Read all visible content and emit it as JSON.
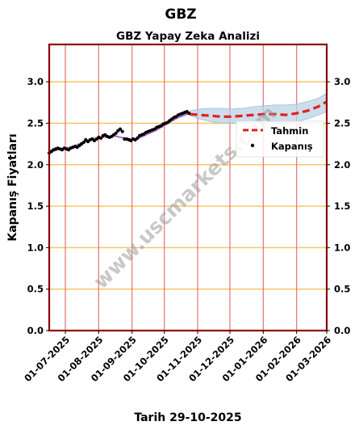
{
  "chart_data": {
    "type": "line",
    "title": "GBZ",
    "subtitle": "GBZ Yapay Zeka Analizi",
    "xlabel": "Tarih 29-10-2025",
    "ylabel": "Kapanış Fiyatları",
    "watermark": "www.uscmarkets.com",
    "ylim": [
      0,
      3.45
    ],
    "y_ticks": [
      "0.0",
      "0.5",
      "1.0",
      "1.5",
      "2.0",
      "2.5",
      "3.0"
    ],
    "x_range_days": [
      0,
      258
    ],
    "x_ticks": [
      {
        "label": "01-07-2025",
        "day": 15
      },
      {
        "label": "01-08-2025",
        "day": 46
      },
      {
        "label": "01-09-2025",
        "day": 77
      },
      {
        "label": "01-10-2025",
        "day": 107
      },
      {
        "label": "01-11-2025",
        "day": 138
      },
      {
        "label": "01-12-2025",
        "day": 168
      },
      {
        "label": "01-01-2026",
        "day": 199
      },
      {
        "label": "01-02-2026",
        "day": 230
      },
      {
        "label": "01-03-2026",
        "day": 258
      }
    ],
    "legend": {
      "placement": "right",
      "items": [
        {
          "label": "Tahmin",
          "kind": "dashed-line"
        },
        {
          "label": "Kapanış",
          "kind": "dot"
        }
      ]
    },
    "grid": true,
    "colors": {
      "frame": "#8b0000",
      "hgrid": "#f6c15a",
      "vgrid": "#e06666",
      "forecast": "#e51d1d",
      "band": "#b9d3e6",
      "fit": "#9b59d0",
      "close": "#000000",
      "watermark": "#9a9a9a"
    },
    "series": [
      {
        "name": "Kapanış",
        "kind": "scatter",
        "x": [
          0,
          2,
          4,
          6,
          8,
          10,
          12,
          14,
          16,
          18,
          20,
          22,
          24,
          26,
          28,
          30,
          32,
          34,
          36,
          38,
          40,
          42,
          44,
          46,
          48,
          50,
          52,
          54,
          56,
          58,
          60,
          62,
          64,
          66,
          68,
          70,
          72,
          74,
          76,
          78,
          80,
          82,
          84,
          86,
          88,
          90,
          92,
          94,
          96,
          98,
          100,
          102,
          104,
          106,
          108,
          110,
          112,
          114,
          116,
          118,
          120,
          122,
          124,
          126,
          128,
          130
        ],
        "y": [
          2.14,
          2.16,
          2.18,
          2.19,
          2.2,
          2.19,
          2.18,
          2.2,
          2.19,
          2.18,
          2.2,
          2.21,
          2.22,
          2.21,
          2.23,
          2.25,
          2.27,
          2.3,
          2.28,
          2.3,
          2.31,
          2.29,
          2.31,
          2.33,
          2.32,
          2.35,
          2.36,
          2.34,
          2.33,
          2.34,
          2.36,
          2.38,
          2.41,
          2.43,
          2.4,
          2.31,
          2.31,
          2.3,
          2.29,
          2.31,
          2.3,
          2.32,
          2.35,
          2.36,
          2.37,
          2.39,
          2.4,
          2.41,
          2.42,
          2.43,
          2.45,
          2.46,
          2.47,
          2.49,
          2.5,
          2.51,
          2.53,
          2.55,
          2.57,
          2.58,
          2.6,
          2.61,
          2.62,
          2.63,
          2.64,
          2.62
        ]
      },
      {
        "name": "",
        "kind": "fit-line",
        "x": [
          0,
          10,
          20,
          30,
          40,
          50,
          60,
          70,
          80,
          90,
          100,
          110,
          120,
          130
        ],
        "y": [
          2.15,
          2.19,
          2.21,
          2.26,
          2.31,
          2.33,
          2.35,
          2.32,
          2.3,
          2.36,
          2.42,
          2.5,
          2.57,
          2.62
        ]
      },
      {
        "name": "Tahmin",
        "kind": "dashed-line",
        "x": [
          131,
          140,
          150,
          160,
          170,
          180,
          190,
          200,
          210,
          220,
          230,
          240,
          250,
          258
        ],
        "y": [
          2.61,
          2.6,
          2.59,
          2.58,
          2.58,
          2.59,
          2.6,
          2.61,
          2.61,
          2.6,
          2.62,
          2.65,
          2.7,
          2.76
        ]
      },
      {
        "name": "",
        "kind": "band",
        "x": [
          131,
          140,
          150,
          160,
          170,
          180,
          190,
          200,
          210,
          220,
          230,
          240,
          250,
          258
        ],
        "lower": [
          2.59,
          2.55,
          2.52,
          2.5,
          2.5,
          2.5,
          2.5,
          2.51,
          2.5,
          2.5,
          2.52,
          2.55,
          2.6,
          2.64
        ],
        "upper": [
          2.65,
          2.67,
          2.68,
          2.68,
          2.67,
          2.68,
          2.7,
          2.71,
          2.72,
          2.72,
          2.73,
          2.76,
          2.8,
          2.86
        ]
      }
    ]
  }
}
